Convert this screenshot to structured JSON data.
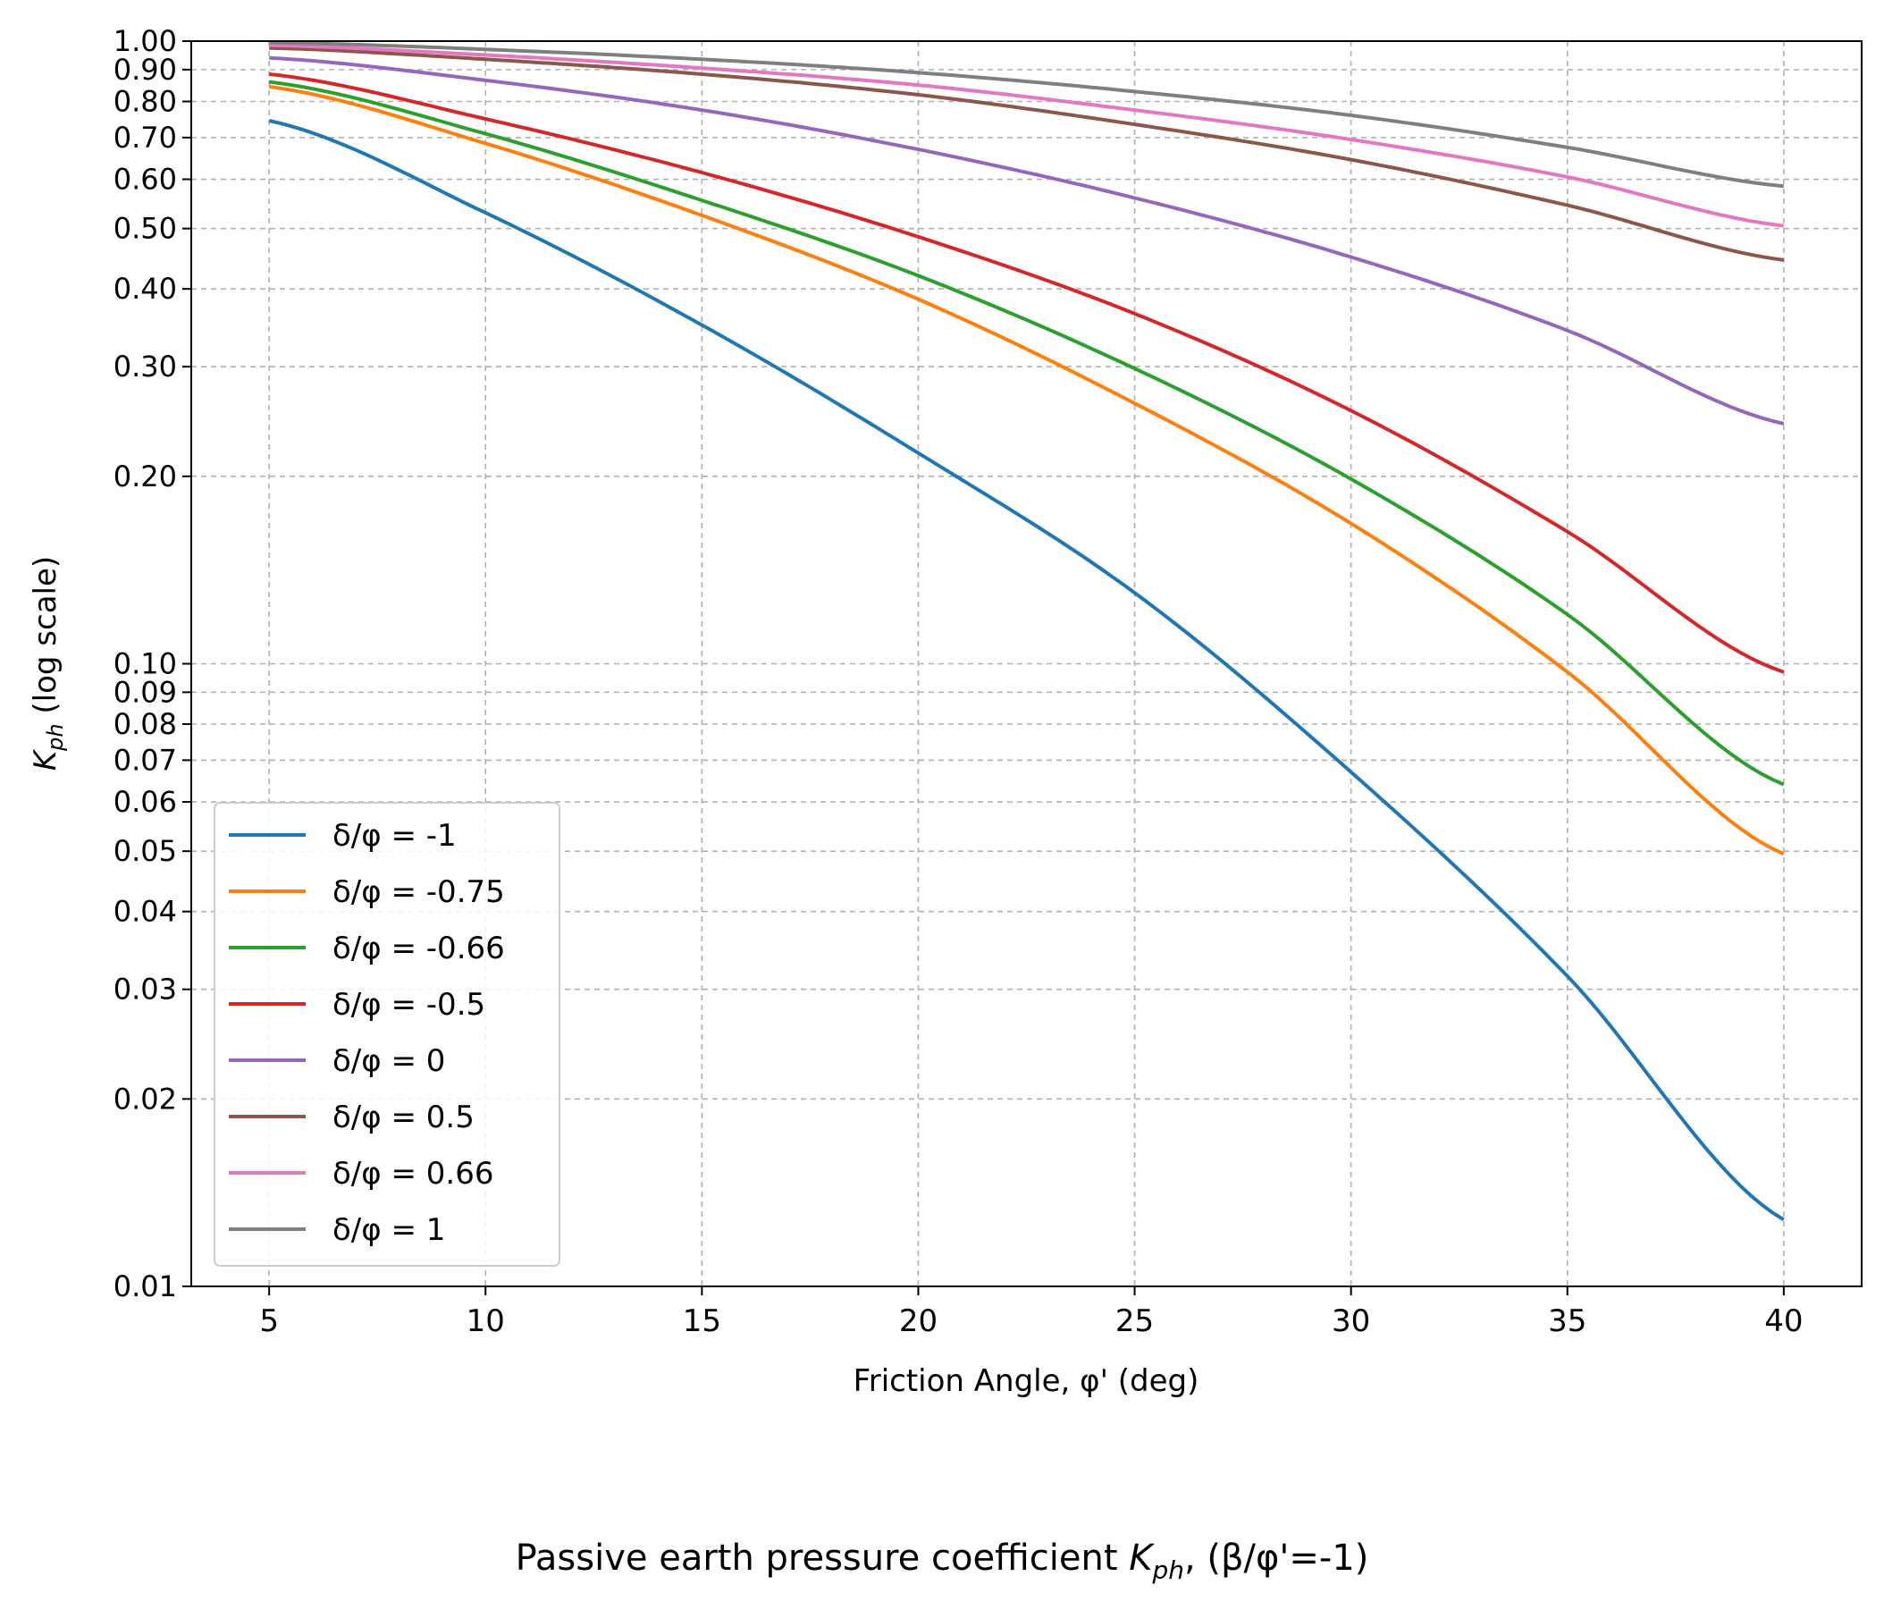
{
  "chart_data": {
    "type": "line",
    "title_parts": {
      "prefix": "Passive earth pressure coefficient ",
      "symbol": "K",
      "subscript": "ph",
      "suffix": ", (β/φ'=-1)"
    },
    "xlabel": "Friction Angle, φ' (deg)",
    "ylabel_parts": {
      "symbol": "K",
      "subscript": "ph",
      "suffix": " (log scale)"
    },
    "xlim": [
      3.2,
      41.8
    ],
    "ylim": [
      0.01,
      1.0
    ],
    "yscale": "log",
    "grid": true,
    "legend_position": "lower-left",
    "x_ticks": [
      5,
      10,
      15,
      20,
      25,
      30,
      35,
      40
    ],
    "x_tick_labels": [
      "5",
      "10",
      "15",
      "20",
      "25",
      "30",
      "35",
      "40"
    ],
    "y_ticks": [
      0.01,
      0.02,
      0.03,
      0.04,
      0.05,
      0.06,
      0.07,
      0.08,
      0.09,
      0.1,
      0.2,
      0.3,
      0.4,
      0.5,
      0.6,
      0.7,
      0.8,
      0.9,
      1.0
    ],
    "y_tick_labels": [
      "0.01",
      "0.02",
      "0.03",
      "0.04",
      "0.05",
      "0.06",
      "0.07",
      "0.08",
      "0.09",
      "0.10",
      "0.20",
      "0.30",
      "0.40",
      "0.50",
      "0.60",
      "0.70",
      "0.80",
      "0.90",
      "1.00"
    ],
    "x": [
      5,
      10,
      15,
      20,
      25,
      30,
      35,
      40
    ],
    "series": [
      {
        "name": "δ/φ = -1",
        "color": "#1f77b4",
        "values": [
          0.745,
          0.53,
          0.35,
          0.218,
          0.13,
          0.067,
          0.0315,
          0.0128
        ]
      },
      {
        "name": "δ/φ = -0.75",
        "color": "#ff7f0e",
        "values": [
          0.845,
          0.685,
          0.525,
          0.385,
          0.262,
          0.168,
          0.097,
          0.0495
        ]
      },
      {
        "name": "δ/φ = -0.66",
        "color": "#2ca02c",
        "values": [
          0.86,
          0.71,
          0.555,
          0.42,
          0.298,
          0.198,
          0.12,
          0.064
        ]
      },
      {
        "name": "δ/φ = -0.5",
        "color": "#d62728",
        "values": [
          0.885,
          0.75,
          0.615,
          0.485,
          0.365,
          0.255,
          0.163,
          0.097
        ]
      },
      {
        "name": "δ/φ = 0",
        "color": "#9467bd",
        "values": [
          0.94,
          0.865,
          0.775,
          0.67,
          0.56,
          0.45,
          0.343,
          0.243
        ]
      },
      {
        "name": "δ/φ = 0.5",
        "color": "#8c564b",
        "values": [
          0.975,
          0.935,
          0.885,
          0.82,
          0.735,
          0.645,
          0.545,
          0.445
        ]
      },
      {
        "name": "δ/φ = 0.66",
        "color": "#e377c2",
        "values": [
          0.985,
          0.95,
          0.905,
          0.85,
          0.775,
          0.695,
          0.605,
          0.505
        ]
      },
      {
        "name": "δ/φ = 1",
        "color": "#7f7f7f",
        "values": [
          0.995,
          0.97,
          0.935,
          0.89,
          0.83,
          0.76,
          0.675,
          0.585
        ]
      }
    ]
  }
}
